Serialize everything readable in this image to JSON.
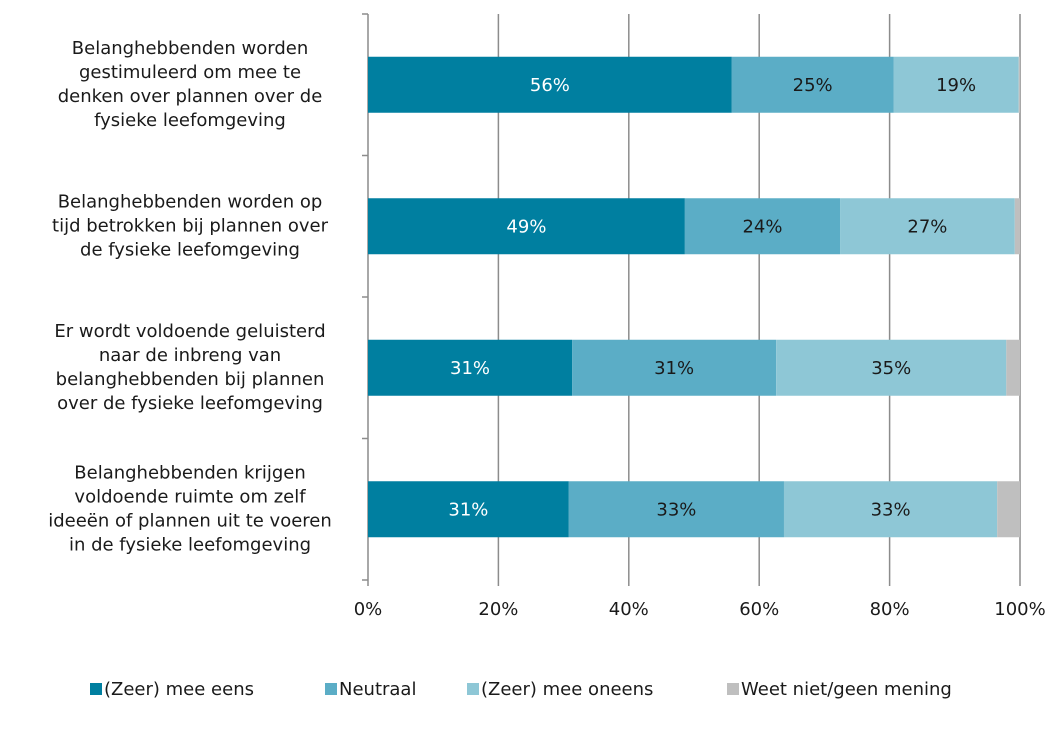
{
  "chart_data": {
    "type": "stacked-bar-horizontal",
    "categories": [
      [
        "Belanghebbenden worden",
        "gestimuleerd om mee te",
        "denken over plannen over de",
        "fysieke leefomgeving"
      ],
      [
        "Belanghebbenden worden op",
        "tijd betrokken bij plannen over",
        "de fysieke leefomgeving"
      ],
      [
        "Er wordt voldoende geluisterd",
        "naar de inbreng van",
        "belanghebbenden bij plannen",
        "over de fysieke leefomgeving"
      ],
      [
        "Belanghebbenden krijgen",
        "voldoende ruimte om zelf",
        "ideeën of plannen uit te voeren",
        "in de fysieke leefomgeving"
      ]
    ],
    "series": [
      {
        "name": "(Zeer) mee eens",
        "color": "#007fa0",
        "label_color": "#ffffff",
        "values": [
          55.8,
          48.6,
          31.3,
          30.8
        ],
        "value_labels": [
          "56%",
          "49%",
          "31%",
          "31%"
        ]
      },
      {
        "name": "Neutraal",
        "color": "#5badc6",
        "label_color": "#1a1a1a",
        "values": [
          24.8,
          23.8,
          31.3,
          33.0
        ],
        "value_labels": [
          "25%",
          "24%",
          "31%",
          "33%"
        ]
      },
      {
        "name": "(Zeer) mee oneens",
        "color": "#8ec7d6",
        "label_color": "#1a1a1a",
        "values": [
          19.2,
          26.8,
          35.3,
          32.7
        ],
        "value_labels": [
          "19%",
          "27%",
          "35%",
          "33%"
        ]
      },
      {
        "name": "Weet niet/geen mening",
        "color": "#bfbfbf",
        "values": [
          0.2,
          0.8,
          2.1,
          3.5
        ]
      }
    ],
    "xlim": [
      0,
      100
    ],
    "xticks": [
      {
        "value": 0,
        "label": "0%"
      },
      {
        "value": 20,
        "label": "20%"
      },
      {
        "value": 40,
        "label": "40%"
      },
      {
        "value": 60,
        "label": "60%"
      },
      {
        "value": 80,
        "label": "80%"
      },
      {
        "value": 100,
        "label": "100%"
      }
    ],
    "grid": true
  }
}
